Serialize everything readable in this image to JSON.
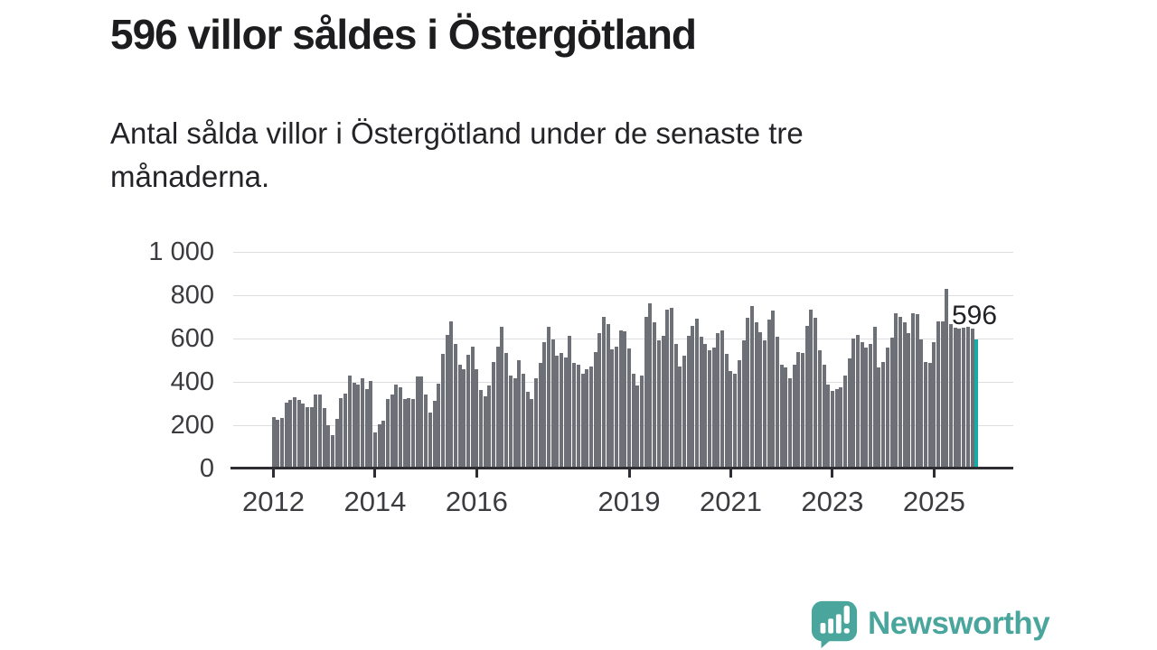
{
  "title": "596 villor såldes i Östergötland",
  "subtitle": "Antal sålda villor i Östergötland under de senaste tre månaderna.",
  "logo": {
    "text": "Newsworthy",
    "icon": "newsworthy-speech-bubble-bar-chart-icon",
    "color": "#4aa69c"
  },
  "chart_data": {
    "type": "bar",
    "title": "596 villor såldes i Östergötland",
    "subtitle": "Antal sålda villor i Östergötland under de senaste tre månaderna.",
    "x_start_year": 2012,
    "x_unit": "month",
    "values": [
      239,
      226,
      232,
      306,
      315,
      329,
      315,
      299,
      285,
      285,
      340,
      340,
      278,
      201,
      153,
      229,
      326,
      347,
      431,
      396,
      389,
      417,
      368,
      403,
      165,
      204,
      222,
      322,
      343,
      389,
      375,
      319,
      326,
      319,
      424,
      424,
      343,
      257,
      312,
      393,
      528,
      618,
      681,
      576,
      479,
      458,
      524,
      563,
      458,
      361,
      333,
      382,
      493,
      563,
      653,
      535,
      431,
      417,
      500,
      438,
      354,
      319,
      417,
      486,
      583,
      653,
      597,
      521,
      535,
      514,
      611,
      489,
      479,
      438,
      458,
      472,
      538,
      625,
      701,
      667,
      552,
      563,
      639,
      635,
      556,
      438,
      385,
      430,
      699,
      764,
      674,
      590,
      611,
      732,
      743,
      576,
      470,
      521,
      614,
      660,
      690,
      607,
      576,
      546,
      558,
      625,
      636,
      528,
      451,
      438,
      500,
      590,
      694,
      750,
      676,
      629,
      590,
      687,
      729,
      607,
      479,
      468,
      417,
      479,
      538,
      535,
      660,
      732,
      694,
      546,
      479,
      389,
      357,
      368,
      375,
      431,
      507,
      601,
      618,
      583,
      560,
      574,
      653,
      465,
      493,
      560,
      604,
      718,
      699,
      674,
      625,
      715,
      712,
      597,
      490,
      486,
      583,
      681,
      681,
      830,
      667,
      648,
      645,
      650,
      653,
      645,
      596
    ],
    "highlight_index": 166,
    "highlight_value": 596,
    "annotation": "596",
    "bar_color": "#6d7076",
    "highlight_color": "#16aba4",
    "ylim": [
      0,
      1000
    ],
    "y_ticks": [
      {
        "value": 0,
        "label": "0"
      },
      {
        "value": 200,
        "label": "200"
      },
      {
        "value": 400,
        "label": "400"
      },
      {
        "value": 600,
        "label": "600"
      },
      {
        "value": 800,
        "label": "800"
      },
      {
        "value": 1000,
        "label": "1 000"
      }
    ],
    "x_ticks": [
      {
        "label": "2012",
        "month_index": 0
      },
      {
        "label": "2014",
        "month_index": 24
      },
      {
        "label": "2016",
        "month_index": 48
      },
      {
        "label": "2019",
        "month_index": 84
      },
      {
        "label": "2021",
        "month_index": 108
      },
      {
        "label": "2023",
        "month_index": 132
      },
      {
        "label": "2025",
        "month_index": 156
      }
    ],
    "grid": true,
    "legend": "none"
  }
}
